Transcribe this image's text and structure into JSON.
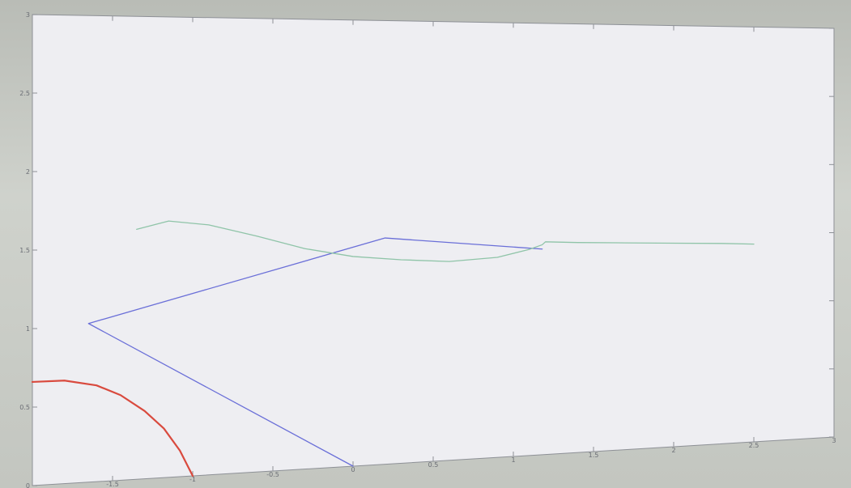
{
  "chart_data": {
    "type": "line",
    "title": "",
    "xlabel": "",
    "ylabel": "",
    "xlim": [
      -2,
      3
    ],
    "ylim": [
      0,
      3
    ],
    "grid": false,
    "x_ticks": [
      {
        "value": -1.5,
        "label": "-1.5"
      },
      {
        "value": -1,
        "label": "-1"
      },
      {
        "value": -0.5,
        "label": "-0.5"
      },
      {
        "value": 0,
        "label": "0"
      },
      {
        "value": 0.5,
        "label": "0.5"
      },
      {
        "value": 1,
        "label": "1"
      },
      {
        "value": 1.5,
        "label": "1.5"
      },
      {
        "value": 2,
        "label": "2"
      },
      {
        "value": 2.5,
        "label": "2.5"
      },
      {
        "value": 3,
        "label": "3"
      }
    ],
    "y_ticks": [
      {
        "value": 0,
        "label": "0"
      },
      {
        "value": 0.5,
        "label": "0.5"
      },
      {
        "value": 1,
        "label": "1"
      },
      {
        "value": 1.5,
        "label": "1.5"
      },
      {
        "value": 2,
        "label": "2"
      },
      {
        "value": 2.5,
        "label": "2.5"
      },
      {
        "value": 3,
        "label": "3"
      }
    ],
    "series": [
      {
        "color": "#d94a3e",
        "x": [
          -2.0,
          -1.8,
          -1.6,
          -1.45,
          -1.3,
          -1.18,
          -1.08,
          -1.0
        ],
        "y": [
          0.66,
          0.66,
          0.62,
          0.55,
          0.44,
          0.32,
          0.17,
          0.0
        ]
      },
      {
        "color": "#6a6fd8",
        "x": [
          0.0,
          -1.65,
          0.2,
          1.18
        ],
        "y": [
          0.0,
          1.02,
          1.53,
          1.43
        ]
      },
      {
        "color": "#8fc4a8",
        "x": [
          -1.35,
          -1.15,
          -0.9,
          -0.6,
          -0.3,
          0.0,
          0.3,
          0.6,
          0.9,
          1.1,
          1.18,
          1.2,
          1.4,
          1.7,
          2.0,
          2.3,
          2.5
        ],
        "y": [
          1.62,
          1.67,
          1.64,
          1.56,
          1.47,
          1.41,
          1.38,
          1.36,
          1.38,
          1.43,
          1.46,
          1.48,
          1.47,
          1.46,
          1.45,
          1.44,
          1.43
        ]
      }
    ]
  }
}
